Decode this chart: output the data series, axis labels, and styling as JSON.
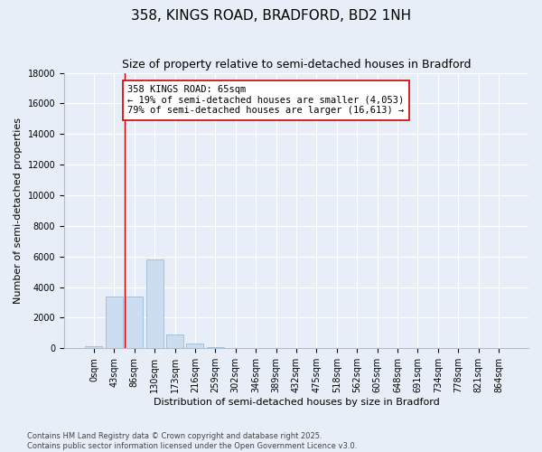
{
  "title": "358, KINGS ROAD, BRADFORD, BD2 1NH",
  "subtitle": "Size of property relative to semi-detached houses in Bradford",
  "xlabel": "Distribution of semi-detached houses by size in Bradford",
  "ylabel": "Number of semi-detached properties",
  "categories": [
    "0sqm",
    "43sqm",
    "86sqm",
    "130sqm",
    "173sqm",
    "216sqm",
    "259sqm",
    "302sqm",
    "346sqm",
    "389sqm",
    "432sqm",
    "475sqm",
    "518sqm",
    "562sqm",
    "605sqm",
    "648sqm",
    "691sqm",
    "734sqm",
    "778sqm",
    "821sqm",
    "864sqm"
  ],
  "values": [
    150,
    3400,
    3400,
    5800,
    900,
    300,
    100,
    50,
    0,
    0,
    0,
    0,
    0,
    0,
    0,
    0,
    0,
    0,
    0,
    0,
    0
  ],
  "bar_color": "#ccddf0",
  "bar_edge_color": "#9bbcd8",
  "vline_x": 1.52,
  "vline_color": "#cc0000",
  "annotation_text": "358 KINGS ROAD: 65sqm\n← 19% of semi-detached houses are smaller (4,053)\n79% of semi-detached houses are larger (16,613) →",
  "annotation_box_color": "white",
  "annotation_box_edge": "#cc0000",
  "ylim": [
    0,
    18000
  ],
  "yticks": [
    0,
    2000,
    4000,
    6000,
    8000,
    10000,
    12000,
    14000,
    16000,
    18000
  ],
  "background_color": "#e8eef8",
  "plot_bg_color": "#e8eef8",
  "footer1": "Contains HM Land Registry data © Crown copyright and database right 2025.",
  "footer2": "Contains public sector information licensed under the Open Government Licence v3.0.",
  "title_fontsize": 11,
  "subtitle_fontsize": 9,
  "axis_label_fontsize": 8,
  "tick_fontsize": 7,
  "annotation_fontsize": 7.5
}
